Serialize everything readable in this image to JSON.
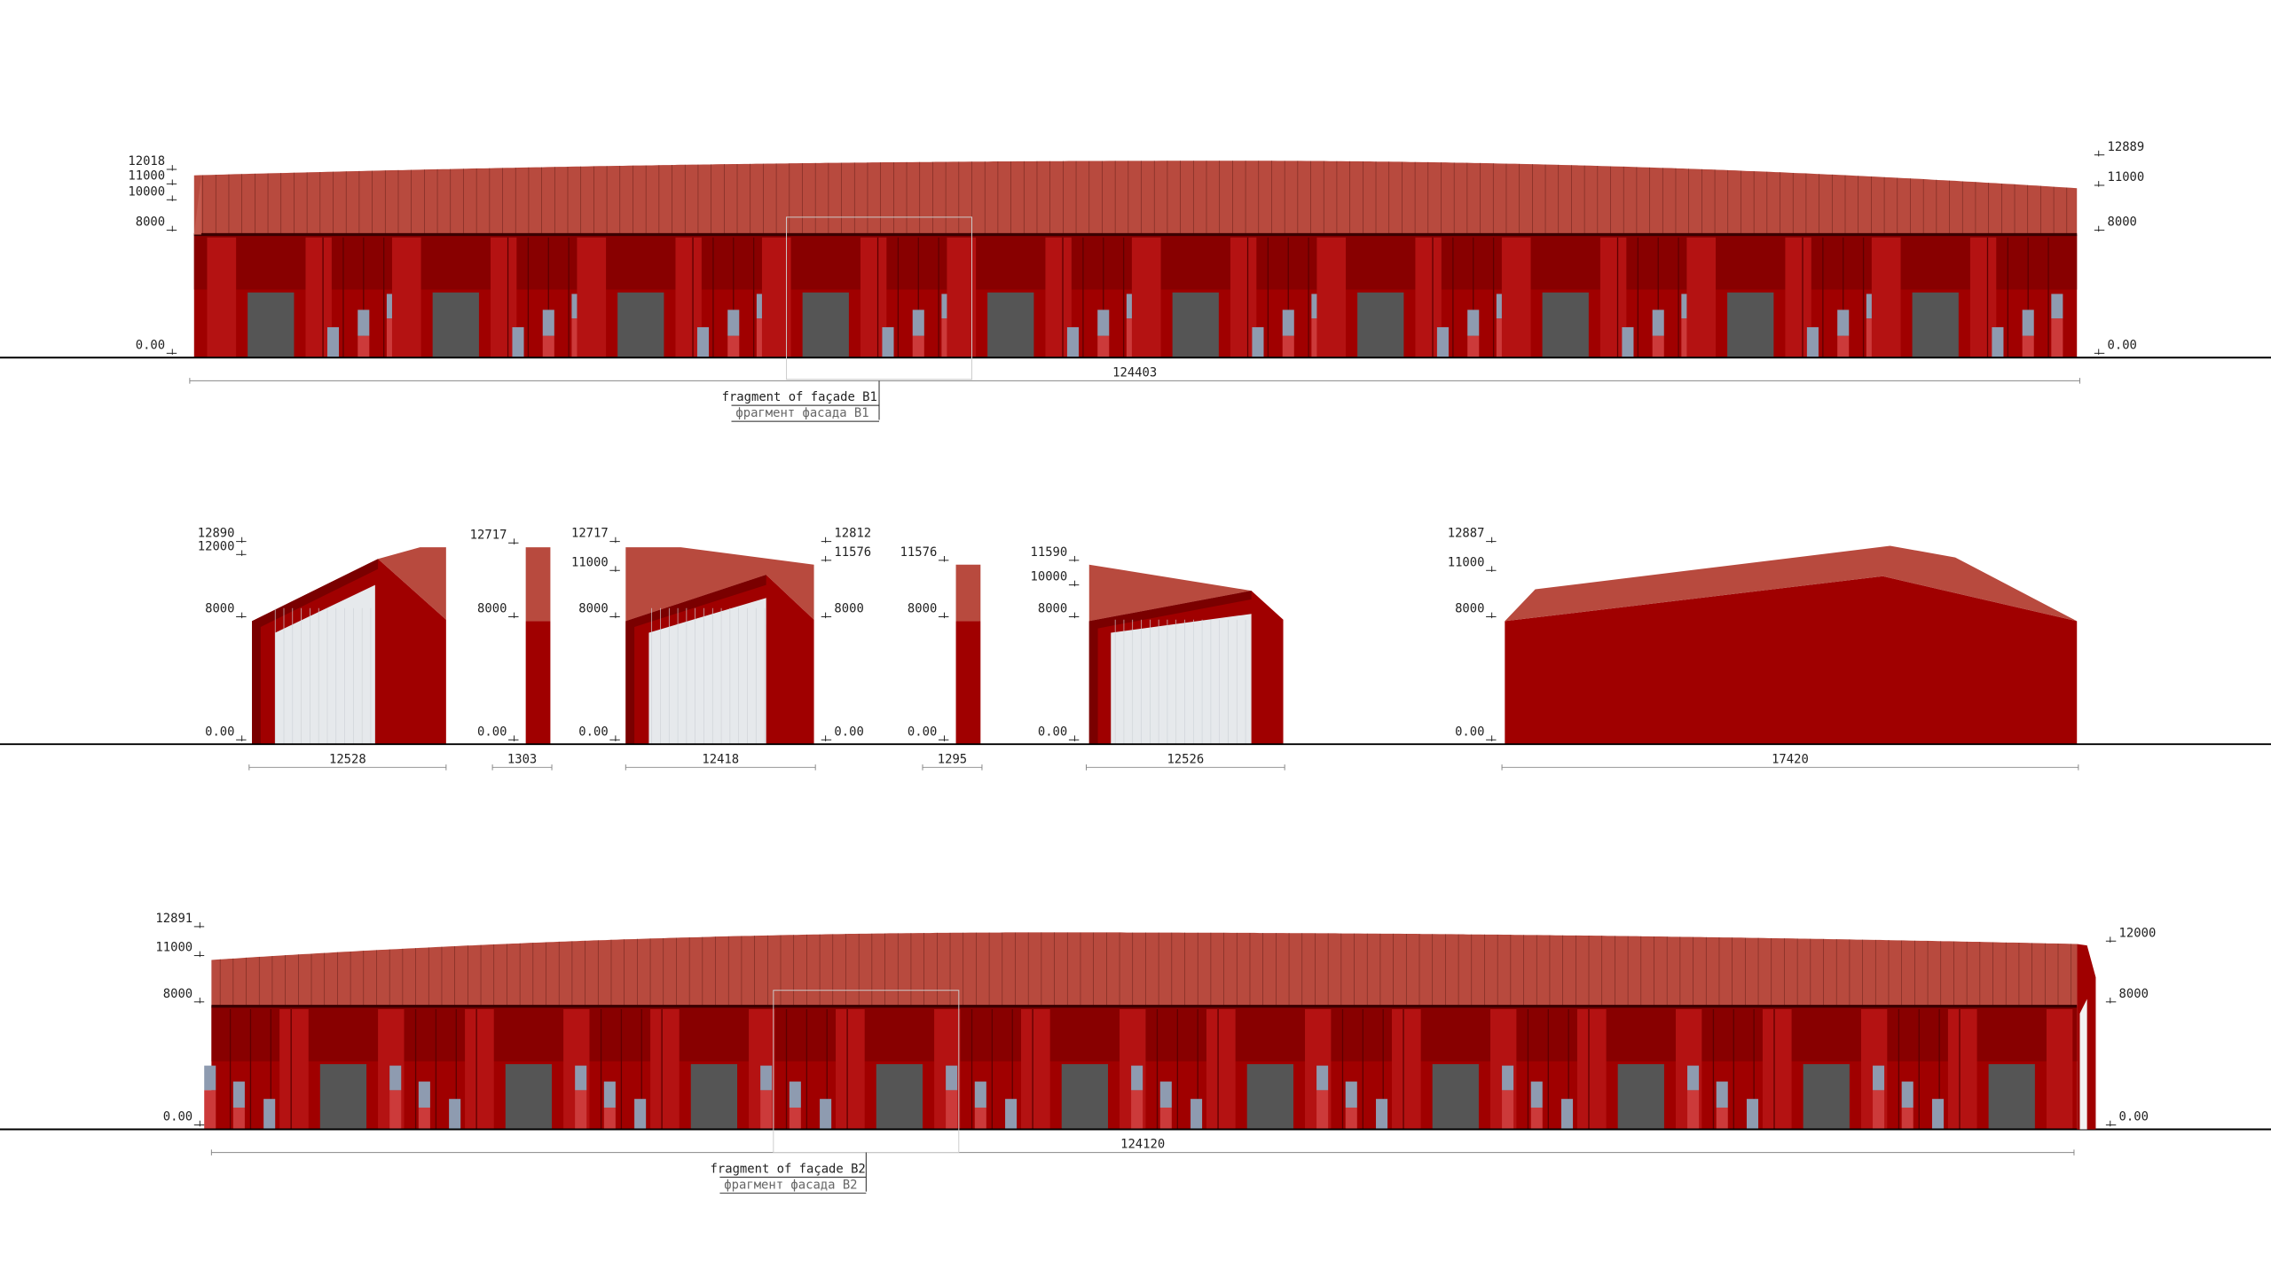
{
  "facade_b1": {
    "levels_left": [
      "12018",
      "11000",
      "10000",
      "8000",
      "0.00"
    ],
    "levels_right": [
      "12889",
      "11000",
      "8000",
      "0.00"
    ],
    "length": "124403",
    "fragment_label": "fragment of façade B1",
    "fragment_label_ru": "фрагмент фасада B1"
  },
  "elevations": [
    {
      "levels_left": [
        "12890",
        "12000",
        "8000",
        "0.00"
      ],
      "width": "12528"
    },
    {
      "levels_left": [
        "12717",
        "8000",
        "0.00"
      ],
      "width": "1303"
    },
    {
      "levels_left": [
        "12717",
        "11000",
        "8000",
        "0.00"
      ],
      "levels_right": [
        "12812",
        "11576",
        "8000",
        "0.00"
      ],
      "width": "12418"
    },
    {
      "levels_left": [
        "11576",
        "8000",
        "0.00"
      ],
      "width": "1295"
    },
    {
      "levels_left": [
        "11590",
        "10000",
        "8000",
        "0.00"
      ],
      "width": "12526"
    },
    {
      "levels_left": [
        "12887",
        "11000",
        "8000",
        "0.00"
      ],
      "width": "17420"
    }
  ],
  "facade_b2": {
    "levels_left": [
      "12891",
      "11000",
      "8000",
      "0.00"
    ],
    "levels_right": [
      "12000",
      "8000",
      "0.00"
    ],
    "length": "124120",
    "fragment_label": "fragment of façade B2",
    "fragment_label_ru": "фрагмент фасада B2"
  }
}
